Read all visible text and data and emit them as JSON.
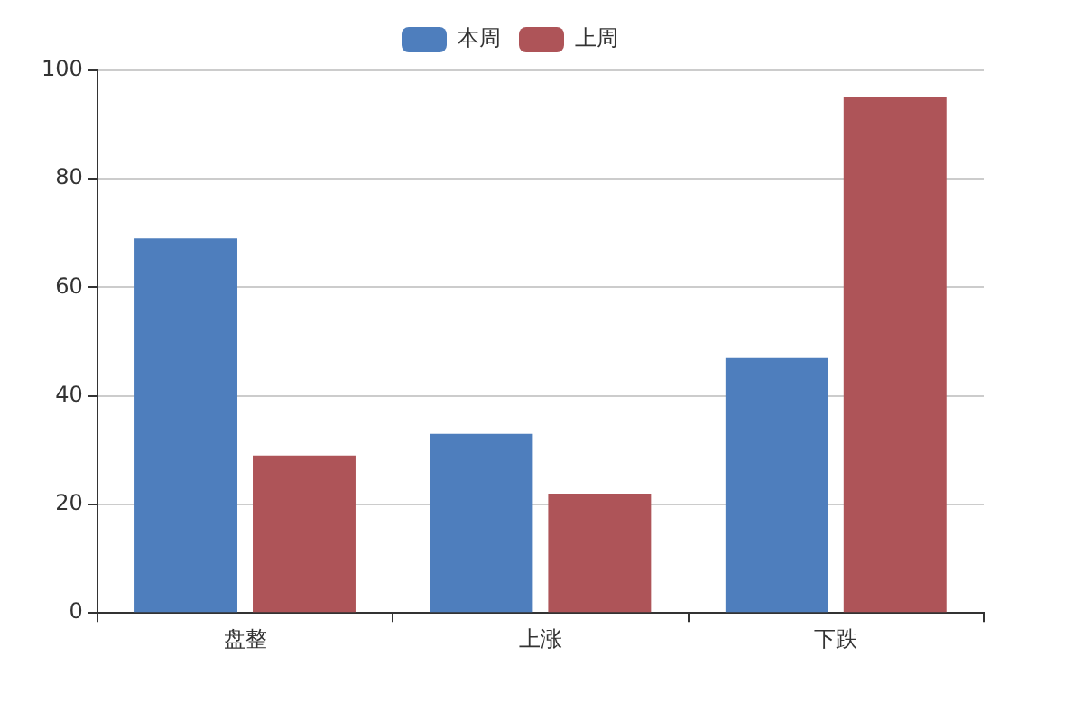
{
  "chart_data": {
    "type": "bar",
    "categories": [
      "盘整",
      "上涨",
      "下跌"
    ],
    "series": [
      {
        "name": "本周",
        "color": "#4e7ebd",
        "values": [
          69,
          33,
          47
        ]
      },
      {
        "name": "上周",
        "color": "#ae5458",
        "values": [
          29,
          22,
          95
        ]
      }
    ],
    "ylim": [
      0,
      100
    ],
    "yticks": [
      0,
      20,
      40,
      60,
      80,
      100
    ],
    "grid": "y",
    "legend": "top"
  }
}
